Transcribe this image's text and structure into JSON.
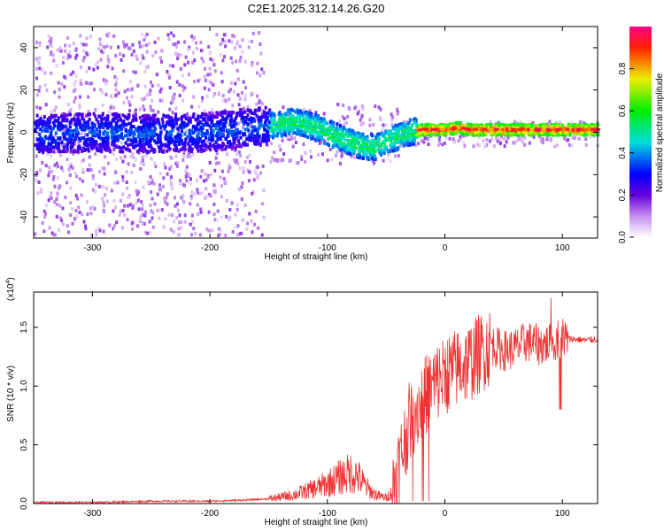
{
  "title": "C2E1.2025.312.14.26.G20",
  "chart_data": [
    {
      "type": "heatmap",
      "title": "C2E1.2025.312.14.26.G20",
      "xlabel": "Height of straight line (km)",
      "ylabel": "Frequency (Hz)",
      "xlim": [
        -350,
        130
      ],
      "ylim": [
        -50,
        50
      ],
      "xticks": [
        -300,
        -200,
        -100,
        0,
        100
      ],
      "yticks": [
        -40,
        -20,
        0,
        20,
        40
      ],
      "xtick_labels": [
        "-300",
        "-200",
        "-100",
        "0",
        "100"
      ],
      "ytick_labels": [
        "-40",
        "-20",
        "0",
        "20",
        "40"
      ],
      "ridge": {
        "x": [
          -350,
          -300,
          -250,
          -200,
          -150,
          -130,
          -110,
          -90,
          -80,
          -70,
          -60,
          -50,
          -40,
          -30,
          -20,
          -10,
          0,
          10,
          20,
          50,
          100,
          130
        ],
        "y": [
          0,
          1,
          0,
          1,
          4,
          6,
          3,
          -2,
          -4,
          -6,
          -6,
          -3,
          -1,
          1,
          2,
          2,
          2,
          3,
          2,
          2,
          2,
          2
        ]
      },
      "colorbar": {
        "label": "Normalized spectral amplitude",
        "range": [
          0,
          1
        ],
        "ticks": [
          0.0,
          0.2,
          0.4,
          0.6,
          0.8
        ],
        "tick_labels": [
          "0.0",
          "0.2",
          "0.4",
          "0.6",
          "0.8"
        ]
      }
    },
    {
      "type": "line",
      "xlabel": "Height of straight line (km)",
      "ylabel": "SNR (10 * v/v)",
      "scale_label": "(x10",
      "scale_exp": "4",
      "scale_close": ")",
      "xlim": [
        -350,
        130
      ],
      "ylim": [
        0,
        1.8
      ],
      "xticks": [
        -300,
        -200,
        -100,
        0,
        100
      ],
      "yticks": [
        0.0,
        0.5,
        1.0,
        1.5
      ],
      "xtick_labels": [
        "-300",
        "-200",
        "-100",
        "0",
        "100"
      ],
      "ytick_labels": [
        "0.0",
        "0.5",
        "1.0",
        "1.5"
      ],
      "color": "#ee3333",
      "series": [
        {
          "name": "SNR",
          "x": [
            -350,
            -300,
            -250,
            -200,
            -170,
            -150,
            -130,
            -120,
            -110,
            -100,
            -90,
            -80,
            -75,
            -70,
            -65,
            -60,
            -55,
            -50,
            -45,
            -40,
            -35,
            -30,
            -25,
            -20,
            -15,
            -10,
            -5,
            0,
            5,
            10,
            20,
            30,
            40,
            50,
            60,
            70,
            80,
            90,
            95,
            100,
            105,
            110,
            120,
            130
          ],
          "y": [
            0.01,
            0.01,
            0.02,
            0.02,
            0.03,
            0.04,
            0.07,
            0.1,
            0.13,
            0.17,
            0.22,
            0.26,
            0.24,
            0.18,
            0.12,
            0.08,
            0.06,
            0.05,
            0.1,
            0.3,
            0.5,
            0.7,
            0.8,
            0.85,
            0.95,
            1.0,
            1.05,
            1.1,
            1.12,
            1.15,
            1.2,
            1.28,
            1.35,
            1.3,
            1.32,
            1.38,
            1.35,
            1.36,
            1.4,
            1.42,
            1.4,
            1.4,
            1.39,
            1.4
          ]
        }
      ]
    }
  ]
}
